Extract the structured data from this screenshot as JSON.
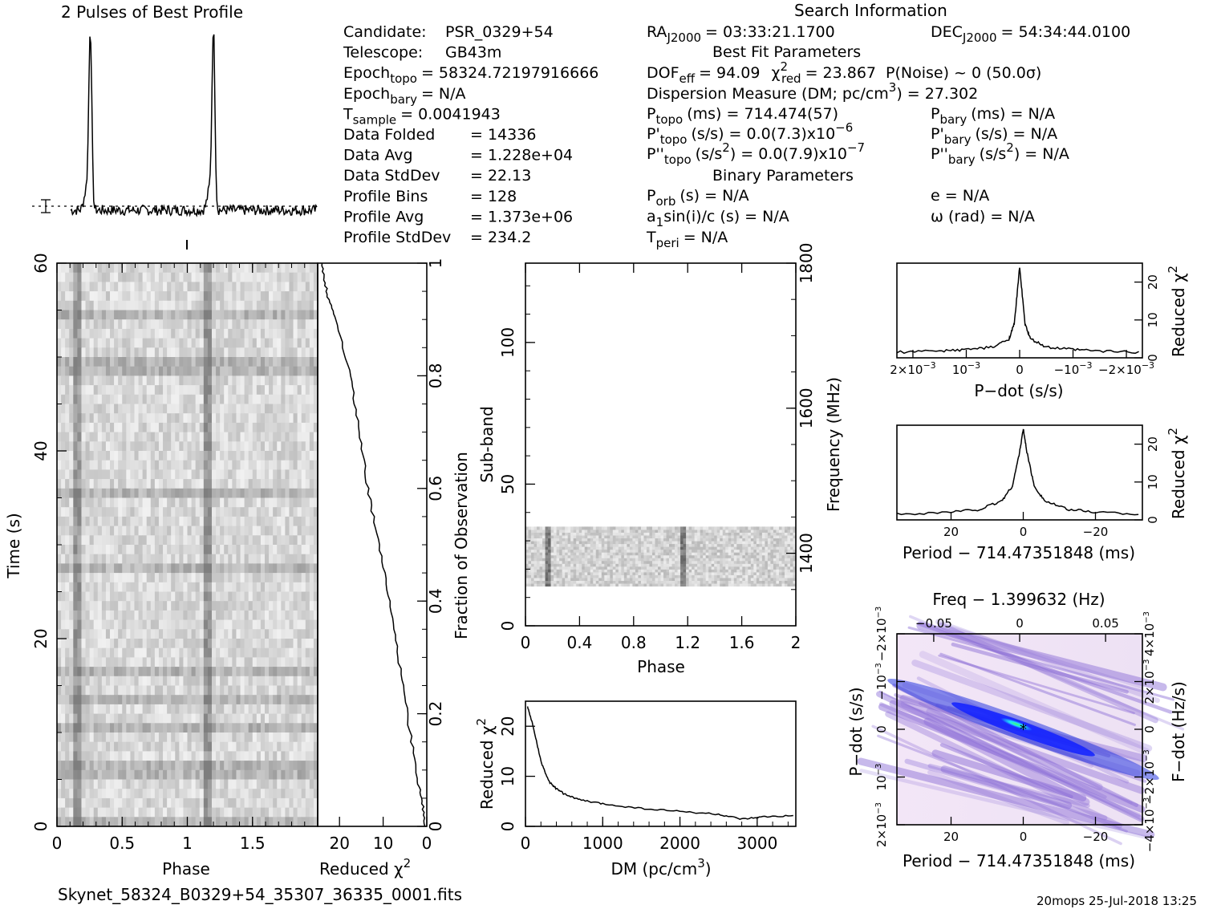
{
  "header": {
    "profile_title": "2 Pulses of Best Profile",
    "search_title": "Search Information",
    "footer_file": "Skynet_58324_B0329+54_35307_36335_0001.fits",
    "footer_stamp": "20mops 25-Jul-2018 13:25"
  },
  "info_left": [
    {
      "label": "Candidate:",
      "value": "PSR_0329+54"
    },
    {
      "label": "Telescope:",
      "value": "GB43m"
    },
    {
      "label": "Epoch",
      "sub": "topo",
      "value": "= 58324.72197916666"
    },
    {
      "label": "Epoch",
      "sub": "bary",
      "value": "= N/A"
    },
    {
      "label": "T",
      "sub": "sample",
      "value": "=   0.0041943"
    },
    {
      "label": "Data Folded",
      "value": "=   14336"
    },
    {
      "label": "Data Avg",
      "value": "=   1.228e+04"
    },
    {
      "label": "Data StdDev",
      "value": "=   22.13"
    },
    {
      "label": "Profile Bins",
      "value": "=   128"
    },
    {
      "label": "Profile Avg",
      "value": "=   1.373e+06"
    },
    {
      "label": "Profile StdDev",
      "value": "=   234.2"
    }
  ],
  "info_mid": {
    "ra": "RA",
    "ra_sub": "J2000",
    "ra_val": "= 03:33:21.1700",
    "dec": "DEC",
    "dec_sub": "J2000",
    "dec_val": "= 54:34:44.0100",
    "best_fit_title": "Best Fit Parameters",
    "dof": "DOF",
    "dof_sub": "eff",
    "dof_val": "= 94.09",
    "chi": "χ",
    "chi_sup": "2",
    "chi_sub": "red",
    "chi_val": "= 23.867",
    "pnoise": "P(Noise) ~ 0    (50.0σ)",
    "dm_line": "Dispersion Measure (DM; pc/cm",
    "dm_sup": "3",
    "dm_val": ") = 27.302",
    "ptopo": "P",
    "ptopo_sub": "topo",
    "ptopo_val": "(ms)  =  714.474(57)",
    "pbary": "P",
    "pbary_sub": "bary",
    "pbary_val": "(ms) = N/A",
    "pdtopo": "P'",
    "pdtopo_sub": "topo",
    "pdtopo_val": "(s/s) = 0.0(7.3)x10",
    "pdtopo_exp": "−6",
    "pdbary": "P'",
    "pdbary_sub": "bary",
    "pdbary_val": "(s/s) = N/A",
    "pddtopo": "P''",
    "pddtopo_sub": "topo",
    "pddtopo_val": "(s/s",
    "pddtopo_sup": "2",
    "pddtopo_val2": ") = 0.0(7.9)x10",
    "pddtopo_exp": "−7",
    "pddbary": "P''",
    "pddbary_sub": "bary",
    "pddbary_val": "(s/s",
    "pddbary_sup": "2",
    "pddbary_val2": ") = N/A",
    "binary_title": "Binary Parameters",
    "porb": "P",
    "porb_sub": "orb",
    "porb_val": "(s) = N/A",
    "a1": "a",
    "a1_sub": "1",
    "a1_val": "sin(i)/c (s) = N/A",
    "tperi": "T",
    "tperi_sub": "peri",
    "tperi_val": "= N/A",
    "ecc": "e = N/A",
    "omega": "ω (rad) = N/A"
  },
  "axes": {
    "time_ylabel": "Time (s)",
    "phase_xlabel": "Phase",
    "redchi_xlabel": "Reduced χ",
    "redchi_sup": "2",
    "fraction_label": "Fraction of Observation",
    "subband_label": "Sub-band",
    "freq_label": "Frequency (MHz)",
    "dm_xlabel": "DM (pc/cm",
    "dm_xlabel_sup": "3",
    "dm_xlabel_end": ")",
    "dm_ylabel": "Reduced χ",
    "pdot_xlabel": "P−dot (s/s)",
    "period_xlabel": "Period − 714.47351848 (ms)",
    "rc_ylabel": "Reduced χ",
    "freq_top_label": "Freq − 1.399632 (Hz)",
    "pdot_ylabel": "P−dot (s/s)",
    "fdot_ylabel": "F−dot (Hz/s)"
  },
  "ticks": {
    "time_y": [
      "0",
      "20",
      "40",
      "60"
    ],
    "phase_x": [
      "0",
      "0.5",
      "1",
      "1.5"
    ],
    "redchi_x": [
      "20",
      "10",
      "0"
    ],
    "fraction_y": [
      "0",
      "0.2",
      "0.4",
      "0.6",
      "0.8",
      "1"
    ],
    "subband_y": [
      "0",
      "50",
      "100"
    ],
    "freq_y": [
      "1400",
      "1600",
      "1800"
    ],
    "phase2_x": [
      "0",
      "0.4",
      "0.8",
      "1.2",
      "1.6",
      "2"
    ],
    "dm_x": [
      "0",
      "1000",
      "2000",
      "3000"
    ],
    "dm_y": [
      "0",
      "10",
      "20"
    ],
    "pdot_x": [
      "2×10",
      "10",
      "0",
      "−10",
      "−2×10"
    ],
    "pdot_x_exp": "−3",
    "rc_y": [
      "0",
      "10",
      "20"
    ],
    "period_x": [
      "20",
      "0",
      "−20"
    ],
    "freq_top_x": [
      "−0.05",
      "0",
      "0.05"
    ],
    "pdot_y": [
      "2×10",
      "10",
      "0",
      "−10",
      "−2×10"
    ],
    "fdot_y": [
      "−4×10",
      "−2×10",
      "0",
      "2×10",
      "4×10"
    ]
  },
  "chart_data": [
    {
      "type": "line",
      "title": "2 Pulses of Best Profile",
      "x_range": [
        0,
        2
      ],
      "pulse_phases": [
        0.16,
        1.16
      ],
      "baseline": 0.05,
      "peak": 1.0
    },
    {
      "type": "heatmap",
      "xlabel": "Phase",
      "ylabel": "Time (s)",
      "x_range": [
        0,
        2
      ],
      "y_range": [
        0,
        60
      ],
      "pulse_phases": [
        0.16,
        1.16
      ]
    },
    {
      "type": "line",
      "xlabel": "Reduced χ2",
      "ylabel": "Fraction of Observation",
      "x_range": [
        25,
        0
      ],
      "y_range": [
        0,
        1
      ],
      "fraction": [
        0,
        0.05,
        0.1,
        0.2,
        0.3,
        0.4,
        0.5,
        0.6,
        0.7,
        0.8,
        0.9,
        0.95,
        1.0
      ],
      "reduced_chi2": [
        0.3,
        1.2,
        2.5,
        4.5,
        6.5,
        8.5,
        11,
        13.5,
        15.5,
        17.5,
        21,
        23,
        24
      ]
    },
    {
      "type": "heatmap",
      "xlabel": "Phase",
      "ylabel": "Sub-band",
      "y2label": "Frequency (MHz)",
      "x_range": [
        0,
        2
      ],
      "y_range": [
        0,
        128
      ],
      "y2_range": [
        1300,
        1800
      ],
      "populated_subbands": [
        14,
        35
      ],
      "pulse_phases": [
        0.16,
        1.16
      ]
    },
    {
      "type": "line",
      "xlabel": "DM (pc/cm3)",
      "ylabel": "Reduced χ2",
      "x_range": [
        0,
        3500
      ],
      "y_range": [
        0,
        25
      ],
      "x": [
        27,
        100,
        200,
        300,
        400,
        500,
        700,
        1000,
        1500,
        2000,
        2500,
        2800,
        3100,
        3500
      ],
      "y": [
        23.9,
        20,
        13,
        9,
        7.5,
        6.5,
        5.3,
        4.5,
        3.6,
        3.0,
        2.4,
        1.4,
        1.9,
        2.1
      ]
    },
    {
      "type": "line",
      "xlabel": "P−dot (s/s)",
      "ylabel": "Reduced χ2",
      "x_range": [
        0.0023,
        -0.0023
      ],
      "y_range": [
        0,
        25
      ],
      "x": [
        0.0023,
        0.0015,
        0.001,
        0.0005,
        0.0002,
        0.0001,
        0,
        -0.0001,
        -0.0002,
        -0.0005,
        -0.001,
        -0.0015,
        -0.0023
      ],
      "y": [
        1.5,
        1.8,
        2.2,
        2.8,
        5,
        9,
        24,
        9,
        5,
        2.8,
        2.2,
        1.8,
        1.5
      ]
    },
    {
      "type": "line",
      "xlabel": "Period − 714.47351848 (ms)",
      "ylabel": "Reduced χ2",
      "x_range": [
        35,
        -33
      ],
      "y_range": [
        0,
        25
      ],
      "x": [
        35,
        20,
        12,
        6,
        3,
        1,
        0,
        -1,
        -3,
        -6,
        -12,
        -20,
        -33
      ],
      "y": [
        1.5,
        2.1,
        2.8,
        5,
        9,
        18,
        24,
        18,
        9,
        5,
        2.8,
        2.1,
        1.5
      ]
    },
    {
      "type": "heatmap",
      "title": "Freq − 1.399632 (Hz)",
      "xlabel": "Period − 714.47351848 (ms)",
      "ylabel": "P−dot (s/s)",
      "y2label": "F−dot (Hz/s)",
      "x_range": [
        35,
        -33
      ],
      "best_period_offset": 0,
      "best_pdot": 0
    }
  ]
}
